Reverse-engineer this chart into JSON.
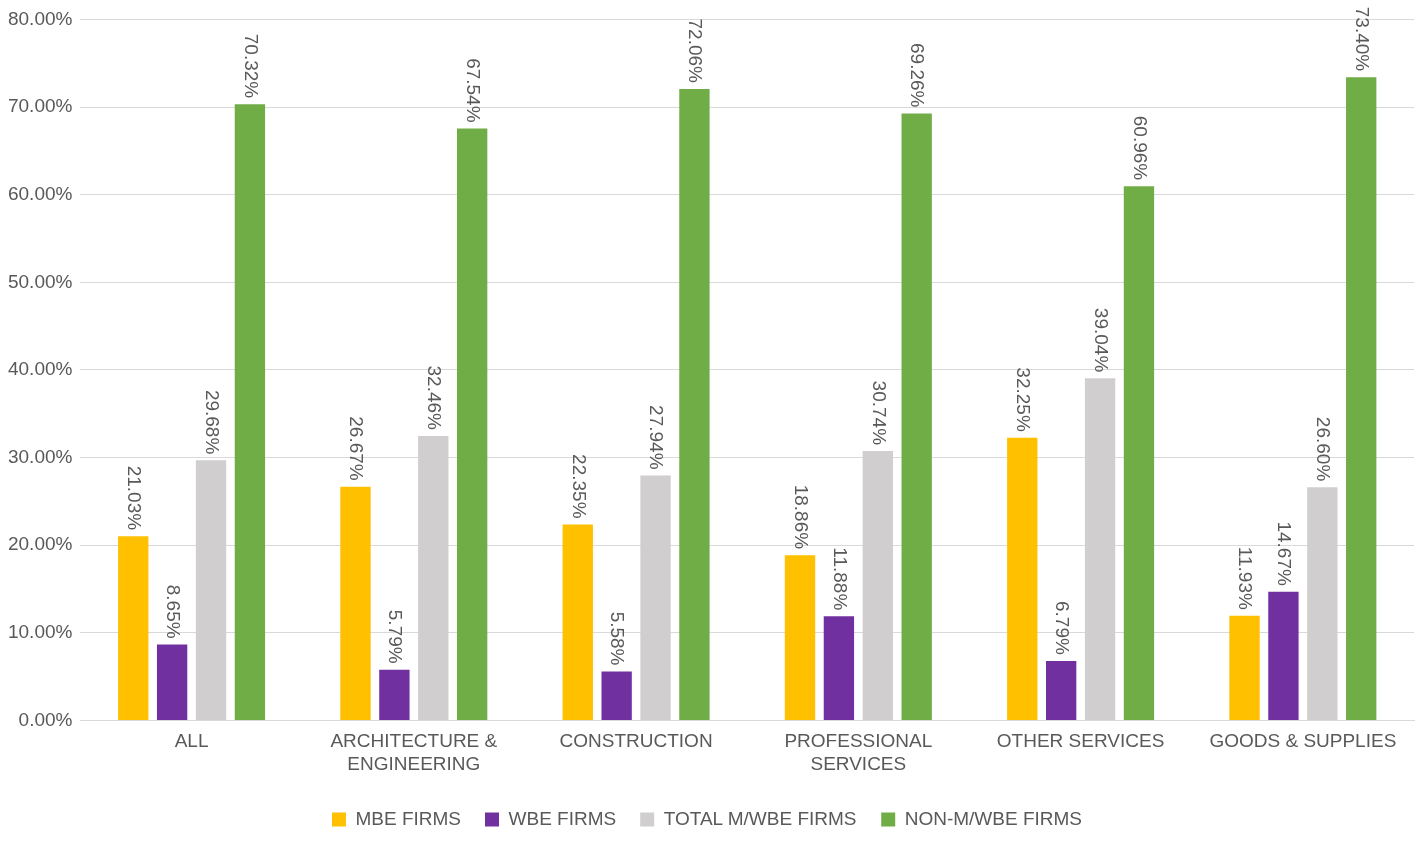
{
  "chart_data": {
    "type": "bar",
    "categories": [
      "ALL",
      "ARCHITECTURE & ENGINEERING",
      "CONSTRUCTION",
      "PROFESSIONAL SERVICES",
      "OTHER SERVICES",
      "GOODS & SUPPLIES"
    ],
    "series": [
      {
        "name": "MBE FIRMS",
        "color": "#ffc000",
        "values": [
          21.03,
          26.67,
          22.35,
          18.86,
          32.25,
          11.93
        ],
        "value_labels": [
          "21.03%",
          "26.67%",
          "22.35%",
          "18.86%",
          "32.25%",
          "11.93%"
        ]
      },
      {
        "name": "WBE FIRMS",
        "color": "#7030a0",
        "values": [
          8.65,
          5.79,
          5.58,
          11.88,
          6.79,
          14.67
        ],
        "value_labels": [
          "8.65%",
          "5.79%",
          "5.58%",
          "11.88%",
          "6.79%",
          "14.67%"
        ]
      },
      {
        "name": "TOTAL M/WBE FIRMS",
        "color": "#d0cece",
        "values": [
          29.68,
          32.46,
          27.94,
          30.74,
          39.04,
          26.6
        ],
        "value_labels": [
          "29.68%",
          "32.46%",
          "27.94%",
          "30.74%",
          "39.04%",
          "26.60%"
        ]
      },
      {
        "name": "NON-M/WBE FIRMS",
        "color": "#70ad47",
        "values": [
          70.32,
          67.54,
          72.06,
          69.26,
          60.96,
          73.4
        ],
        "value_labels": [
          "70.32%",
          "67.54%",
          "72.06%",
          "69.26%",
          "60.96%",
          "73.40%"
        ]
      }
    ],
    "ylim": [
      0,
      80
    ],
    "yticks": [
      {
        "value": 0,
        "label": "0.00%"
      },
      {
        "value": 10,
        "label": "10.00%"
      },
      {
        "value": 20,
        "label": "20.00%"
      },
      {
        "value": 30,
        "label": "30.00%"
      },
      {
        "value": 40,
        "label": "40.00%"
      },
      {
        "value": 50,
        "label": "50.00%"
      },
      {
        "value": 60,
        "label": "60.00%"
      },
      {
        "value": 70,
        "label": "70.00%"
      },
      {
        "value": 80,
        "label": "80.00%"
      }
    ],
    "grid": "y",
    "legend": "bottom"
  }
}
